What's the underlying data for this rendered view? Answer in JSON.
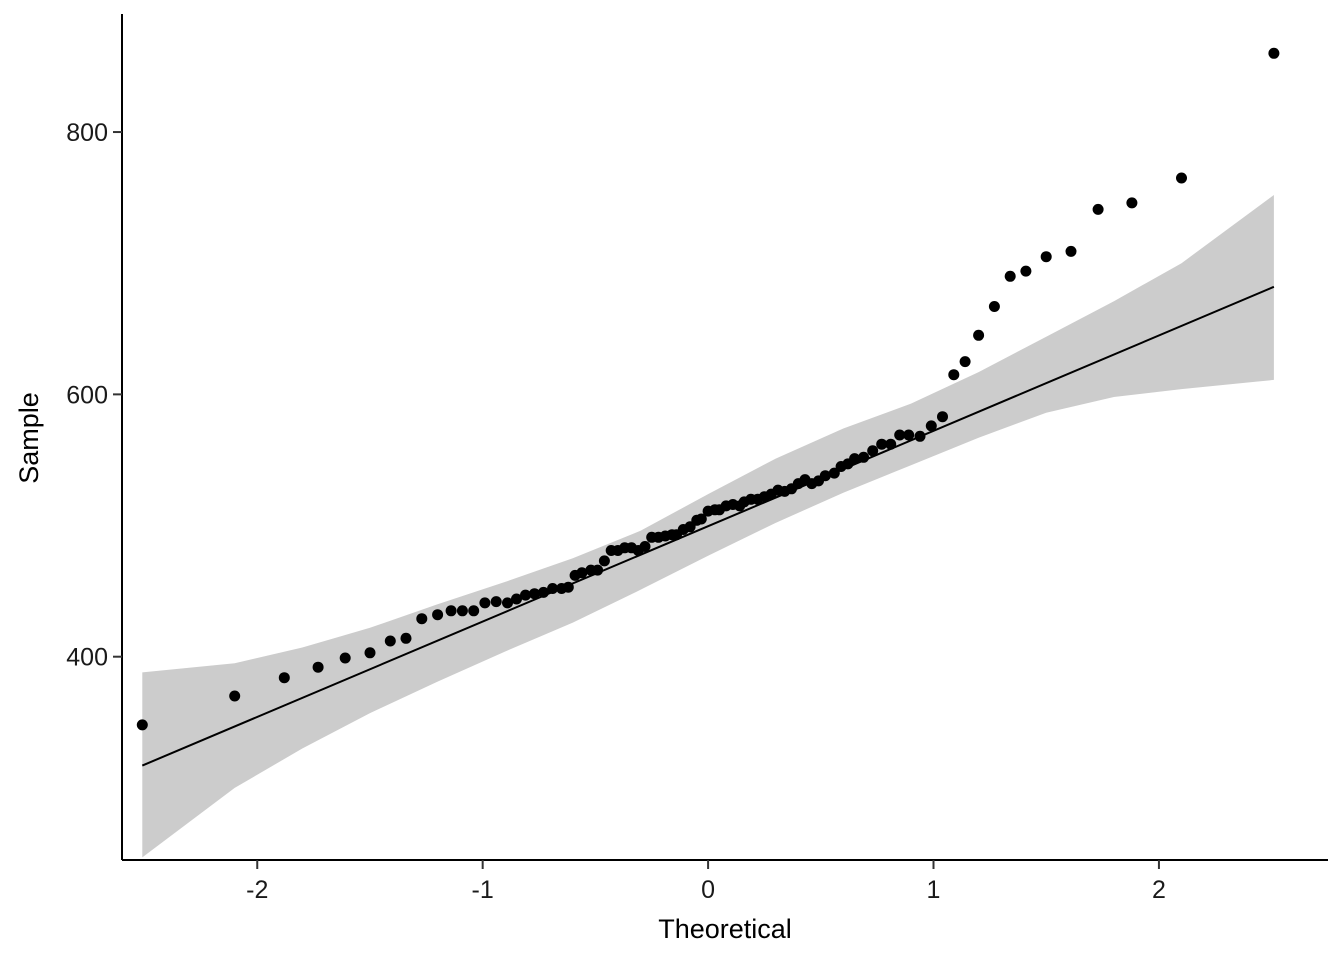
{
  "chart_data": {
    "type": "scatter",
    "subtype": "qq-plot",
    "xlabel": "Theoretical",
    "ylabel": "Sample",
    "xlim": [
      -2.6,
      2.75
    ],
    "ylim": [
      245,
      890
    ],
    "xticks": [
      -2,
      -1,
      0,
      1,
      2
    ],
    "xtick_labels": [
      "-2",
      "-1",
      "0",
      "1",
      "2"
    ],
    "yticks": [
      400,
      600,
      800
    ],
    "ytick_labels": [
      "400",
      "600",
      "800"
    ],
    "grid": false,
    "legend": "none",
    "colors": {
      "points": "#000000",
      "reference_line": "#000000",
      "confidence_band": "#cccccc"
    },
    "points": {
      "x": [
        -2.51,
        -2.1,
        -1.88,
        -1.73,
        -1.61,
        -1.5,
        -1.41,
        -1.34,
        -1.27,
        -1.2,
        -1.14,
        -1.09,
        -1.04,
        -0.99,
        -0.94,
        -0.89,
        -0.85,
        -0.81,
        -0.77,
        -0.73,
        -0.69,
        -0.65,
        -0.62,
        -0.59,
        -0.56,
        -0.52,
        -0.49,
        -0.46,
        -0.43,
        -0.4,
        -0.37,
        -0.34,
        -0.31,
        -0.28,
        -0.25,
        -0.22,
        -0.19,
        -0.16,
        -0.14,
        -0.11,
        -0.08,
        -0.05,
        -0.03,
        0.0,
        0.03,
        0.05,
        0.08,
        0.11,
        0.14,
        0.16,
        0.19,
        0.22,
        0.25,
        0.28,
        0.31,
        0.34,
        0.37,
        0.4,
        0.43,
        0.46,
        0.49,
        0.52,
        0.56,
        0.59,
        0.62,
        0.65,
        0.69,
        0.73,
        0.77,
        0.81,
        0.85,
        0.89,
        0.94,
        0.99,
        1.04,
        1.09,
        1.14,
        1.2,
        1.27,
        1.34,
        1.41,
        1.5,
        1.61,
        1.73,
        1.88,
        2.1,
        2.51
      ],
      "y": [
        348,
        370,
        384,
        392,
        399,
        403,
        412,
        414,
        429,
        432,
        435,
        435,
        435,
        441,
        442,
        441,
        444,
        447,
        448,
        449,
        452,
        452,
        453,
        462,
        464,
        466,
        466,
        473,
        481,
        481,
        483,
        483,
        481,
        484,
        491,
        491,
        492,
        493,
        493,
        497,
        499,
        504,
        505,
        511,
        512,
        512,
        515,
        516,
        515,
        518,
        520,
        520,
        522,
        524,
        527,
        526,
        528,
        532,
        535,
        532,
        534,
        538,
        540,
        545,
        547,
        551,
        552,
        557,
        562,
        562,
        569,
        569,
        568,
        576,
        583,
        615,
        625,
        645,
        667,
        690,
        694,
        705,
        709,
        741,
        746,
        765,
        860
      ]
    },
    "reference_line": {
      "x": [
        -2.51,
        2.51
      ],
      "y": [
        317,
        682
      ]
    },
    "confidence_band": {
      "x": [
        -2.51,
        -2.1,
        -1.8,
        -1.5,
        -1.2,
        -0.9,
        -0.6,
        -0.3,
        0.0,
        0.3,
        0.6,
        0.9,
        1.2,
        1.5,
        1.8,
        2.1,
        2.51
      ],
      "lower": [
        247,
        300,
        330,
        357,
        381,
        404,
        426,
        451,
        477,
        502,
        525,
        546,
        567,
        586,
        598,
        604,
        611
      ],
      "upper": [
        388,
        395,
        407,
        422,
        440,
        457,
        475,
        496,
        524,
        551,
        574,
        593,
        617,
        644,
        671,
        700,
        752
      ]
    }
  }
}
